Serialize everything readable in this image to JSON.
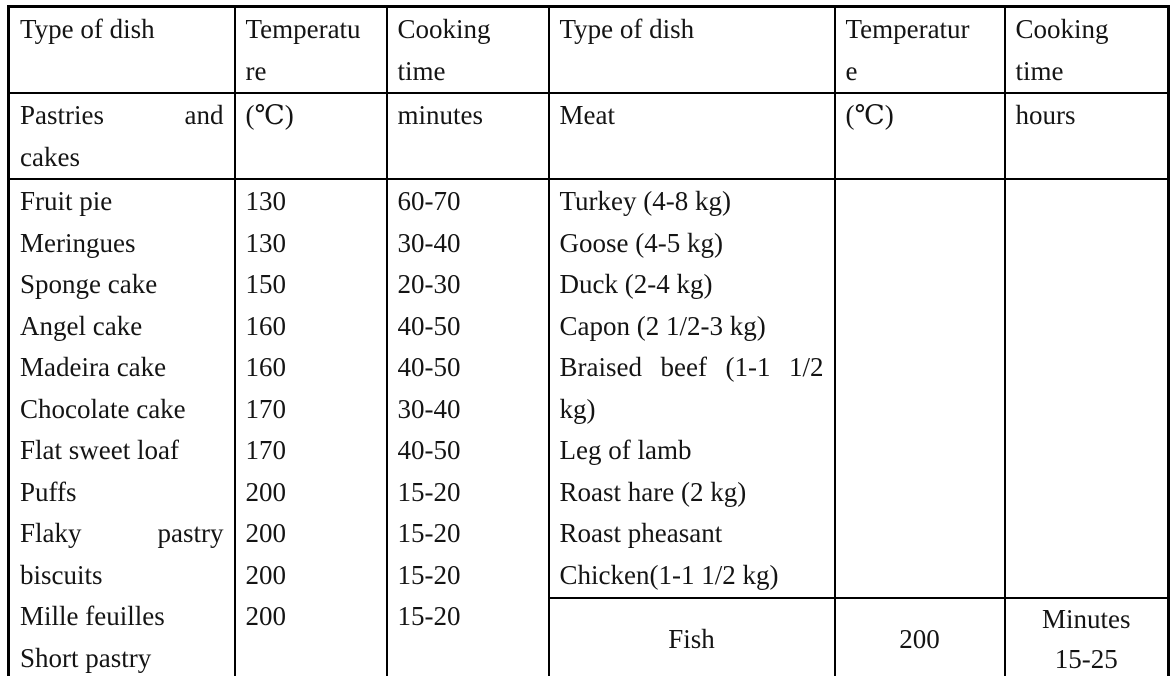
{
  "colors": {
    "border": "#000000",
    "text": "#141414",
    "background": "#ffffff"
  },
  "table": {
    "header": {
      "r1c1": [
        "Type of dish"
      ],
      "r1c2": [
        "Temperatu",
        "re"
      ],
      "r1c3": [
        "Cooking",
        "time"
      ],
      "r1c4": [
        "Type of dish"
      ],
      "r1c5": [
        "Temperatur",
        "e"
      ],
      "r1c6": [
        "Cooking",
        "time"
      ],
      "r2c1": [
        {
          "text": "Pastries and",
          "justify": true
        },
        "cakes"
      ],
      "r2c2": [
        "(℃)"
      ],
      "r2c3": [
        "minutes"
      ],
      "r2c4": [
        "Meat"
      ],
      "r2c5": [
        "(℃)"
      ],
      "r2c6": [
        "hours"
      ]
    },
    "pastries": {
      "dishes": [
        "Fruit pie",
        "Meringues",
        "Sponge cake",
        "Angel cake",
        "Madeira cake",
        "Chocolate cake",
        "Flat sweet loaf",
        "Puffs",
        {
          "text": "Flaky pastry",
          "justify": true
        },
        "biscuits",
        "Mille feuilles",
        "Short pastry"
      ],
      "temperatures": [
        "130",
        "130",
        "150",
        "160",
        "160",
        "170",
        "170",
        "200",
        "200",
        "200",
        "200"
      ],
      "times": [
        "60-70",
        "30-40",
        "20-30",
        "40-50",
        "40-50",
        "30-40",
        "40-50",
        "15-20",
        "15-20",
        "15-20",
        "15-20"
      ]
    },
    "meat": {
      "dishes": [
        "Turkey (4-8 kg)",
        "Goose (4-5 kg)",
        "Duck (2-4 kg)",
        "Capon (2 1/2-3 kg)",
        {
          "text": "Braised beef (1-1 1/2",
          "justify": true
        },
        "kg)",
        "Leg of lamb",
        "Roast hare (2 kg)",
        "Roast pheasant",
        "Chicken(1-1 1/2 kg)"
      ],
      "temperatures": [],
      "times": []
    },
    "fish": {
      "dish": "Fish",
      "temperature": "200",
      "time": [
        "Minutes",
        "15-25"
      ]
    }
  }
}
